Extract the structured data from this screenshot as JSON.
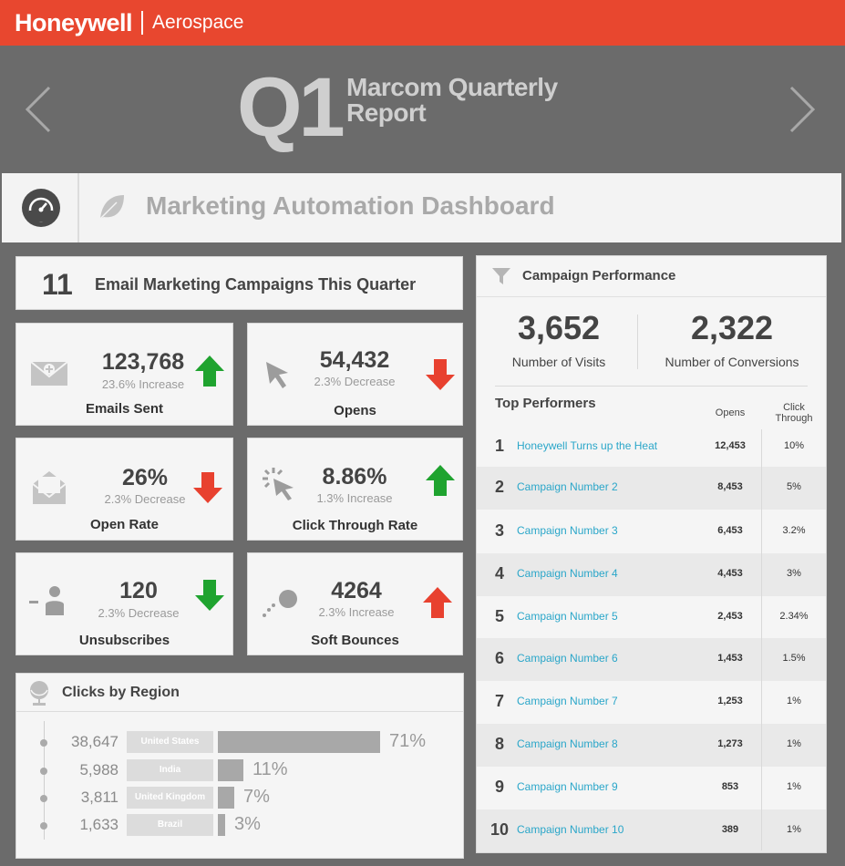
{
  "header": {
    "brand": "Honeywell",
    "division": "Aerospace"
  },
  "hero": {
    "quarter": "Q1",
    "title": "Marcom Quarterly Report"
  },
  "dashboard": {
    "title": "Marketing Automation Dashboard"
  },
  "campaigns": {
    "count": "11",
    "label": "Email Marketing Campaigns This Quarter"
  },
  "metrics": [
    {
      "value": "123,768",
      "change": "23.6% Increase",
      "name": "Emails Sent",
      "trend": "up",
      "icon": "envelope-icon"
    },
    {
      "value": "54,432",
      "change": "2.3% Decrease",
      "name": "Opens",
      "trend": "down",
      "icon": "cursor-icon"
    },
    {
      "value": "26%",
      "change": "2.3% Decrease",
      "name": "Open Rate",
      "trend": "down",
      "icon": "open-envelope-icon"
    },
    {
      "value": "8.86%",
      "change": "1.3% Increase",
      "name": "Click Through Rate",
      "trend": "up",
      "icon": "click-icon"
    },
    {
      "value": "120",
      "change": "2.3% Decrease",
      "name": "Unsubscribes",
      "trend": "down",
      "icon": "remove-user-icon"
    },
    {
      "value": "4264",
      "change": "2.3% Increase",
      "name": "Soft Bounces",
      "trend": "up",
      "icon": "bounce-icon"
    }
  ],
  "regions": {
    "title": "Clicks by Region",
    "rows": [
      {
        "clicks": "38,647",
        "name": "United States",
        "pct": "71%",
        "share": 0.71
      },
      {
        "clicks": "5,988",
        "name": "India",
        "pct": "11%",
        "share": 0.11
      },
      {
        "clicks": "3,811",
        "name": "United Kingdom",
        "pct": "7%",
        "share": 0.07
      },
      {
        "clicks": "1,633",
        "name": "Brazil",
        "pct": "3%",
        "share": 0.03
      }
    ]
  },
  "performance": {
    "title": "Campaign Performance",
    "visits": "3,652",
    "visits_label": "Number of Visits",
    "conversions": "2,322",
    "conversions_label": "Number of Conversions",
    "top_title": "Top Performers",
    "col_opens": "Opens",
    "col_ct_1": "Click",
    "col_ct_2": "Through",
    "rows": [
      {
        "rank": "1",
        "name": "Honeywell Turns up the Heat",
        "opens": "12,453",
        "ct": "10%"
      },
      {
        "rank": "2",
        "name": "Campaign Number 2",
        "opens": "8,453",
        "ct": "5%"
      },
      {
        "rank": "3",
        "name": "Campaign Number 3",
        "opens": "6,453",
        "ct": "3.2%"
      },
      {
        "rank": "4",
        "name": "Campaign Number 4",
        "opens": "4,453",
        "ct": "3%"
      },
      {
        "rank": "5",
        "name": "Campaign Number 5",
        "opens": "2,453",
        "ct": "2.34%"
      },
      {
        "rank": "6",
        "name": "Campaign Number 6",
        "opens": "1,453",
        "ct": "1.5%"
      },
      {
        "rank": "7",
        "name": "Campaign Number 7",
        "opens": "1,253",
        "ct": "1%"
      },
      {
        "rank": "8",
        "name": "Campaign Number 8",
        "opens": "1,273",
        "ct": "1%"
      },
      {
        "rank": "9",
        "name": "Campaign Number 9",
        "opens": "853",
        "ct": "1%"
      },
      {
        "rank": "10",
        "name": "Campaign Number 10",
        "opens": "389",
        "ct": "1%"
      }
    ]
  },
  "colors": {
    "brand": "#e8472f",
    "up": "#1fa32f",
    "down": "#e8412f",
    "link": "#2aa6c9",
    "panel": "#6b6b6b"
  }
}
